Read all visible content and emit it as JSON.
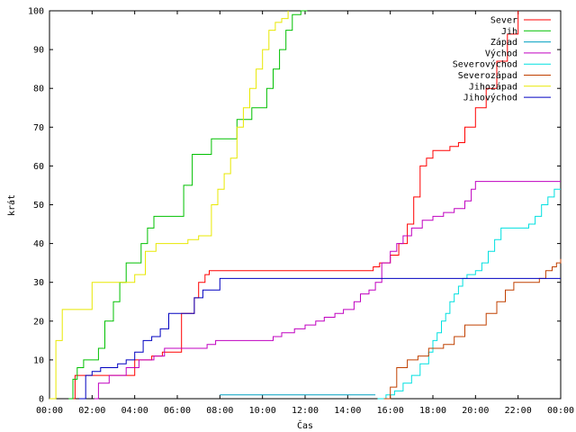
{
  "chart_data": {
    "type": "line",
    "title": "",
    "xlabel": "Čas",
    "ylabel": "krát",
    "xlim": [
      0,
      24
    ],
    "ylim": [
      0,
      100
    ],
    "x_ticks": [
      0,
      2,
      4,
      6,
      8,
      10,
      12,
      14,
      16,
      18,
      20,
      22,
      24
    ],
    "x_tick_labels": [
      "00:00",
      "02:00",
      "04:00",
      "06:00",
      "08:00",
      "10:00",
      "12:00",
      "14:00",
      "16:00",
      "18:00",
      "20:00",
      "22:00",
      "00:00"
    ],
    "y_ticks": [
      0,
      10,
      20,
      30,
      40,
      50,
      60,
      70,
      80,
      90,
      100
    ],
    "y_tick_labels": [
      "0",
      "10",
      "20",
      "30",
      "40",
      "50",
      "60",
      "70",
      "80",
      "90",
      "100"
    ],
    "grid": false,
    "legend_position": "top-right",
    "series": [
      {
        "name": "Sever",
        "color": "#ff0000",
        "x": [
          1.0,
          1.2,
          2.0,
          3.3,
          4.0,
          4.8,
          5.3,
          6.2,
          6.6,
          6.8,
          7.0,
          7.3,
          7.5,
          8.0,
          10.0,
          12.0,
          14.0,
          15.0,
          15.2,
          15.5,
          16.0,
          16.4,
          16.8,
          17.1,
          17.4,
          17.7,
          18.0,
          18.3,
          18.8,
          19.2,
          19.5,
          20.0,
          20.5,
          21.0,
          21.5,
          22.0
        ],
        "y": [
          0,
          6,
          6,
          6,
          10,
          11,
          12,
          22,
          22,
          26,
          30,
          32,
          33,
          33,
          33,
          33,
          33,
          33,
          34,
          35,
          37,
          40,
          45,
          52,
          60,
          62,
          64,
          64,
          65,
          66,
          70,
          75,
          80,
          87,
          94,
          100
        ]
      },
      {
        "name": "Jih",
        "color": "#00c000",
        "x": [
          0.9,
          1.1,
          1.3,
          1.6,
          2.0,
          2.3,
          2.6,
          3.0,
          3.3,
          3.6,
          4.0,
          4.3,
          4.6,
          4.9,
          5.2,
          5.5,
          6.0,
          6.3,
          6.7,
          7.2,
          7.6,
          8.0,
          8.5,
          8.8,
          9.2,
          9.5,
          9.8,
          10.2,
          10.5,
          10.8,
          11.1,
          11.4,
          11.6,
          11.8,
          12.1
        ],
        "y": [
          0,
          5,
          8,
          10,
          10,
          13,
          20,
          25,
          30,
          35,
          35,
          40,
          44,
          47,
          47,
          47,
          47,
          55,
          63,
          63,
          67,
          67,
          67,
          72,
          72,
          75,
          75,
          80,
          85,
          90,
          95,
          99,
          99,
          100,
          100
        ]
      },
      {
        "name": "Západ",
        "color": "#00a0c0",
        "x": [
          8.0,
          9.0,
          10.0,
          11.0,
          12.0,
          13.0,
          14.0,
          15.0,
          15.3
        ],
        "y": [
          1,
          1,
          1,
          1,
          1,
          1,
          1,
          1,
          1
        ]
      },
      {
        "name": "Východ",
        "color": "#c000c0",
        "x": [
          2.1,
          2.3,
          2.8,
          3.6,
          4.2,
          4.9,
          5.4,
          6.0,
          6.7,
          7.4,
          7.8,
          8.4,
          9.2,
          10.0,
          10.5,
          10.9,
          11.5,
          12.0,
          12.5,
          12.9,
          13.4,
          13.8,
          14.3,
          14.6,
          15.0,
          15.3,
          15.6,
          16.0,
          16.3,
          16.6,
          17.0,
          17.5,
          18.0,
          18.5,
          19.0,
          19.5,
          19.8,
          20.0,
          21.0,
          22.0,
          23.0,
          24.0
        ],
        "y": [
          0,
          4,
          6,
          8,
          10,
          11,
          13,
          13,
          13,
          14,
          15,
          15,
          15,
          15,
          16,
          17,
          18,
          19,
          20,
          21,
          22,
          23,
          25,
          27,
          28,
          30,
          35,
          38,
          40,
          42,
          44,
          46,
          47,
          48,
          49,
          51,
          54,
          56,
          56,
          56,
          56,
          56
        ]
      },
      {
        "name": "Severovýchod",
        "color": "#00e0e0",
        "x": [
          15.4,
          15.8,
          16.2,
          16.6,
          17.0,
          17.4,
          17.8,
          18.0,
          18.2,
          18.4,
          18.6,
          18.8,
          19.0,
          19.2,
          19.4,
          19.6,
          19.8,
          20.0,
          20.3,
          20.6,
          20.9,
          21.2,
          21.5,
          22.0,
          22.5,
          22.8,
          23.1,
          23.4,
          23.7,
          24.0
        ],
        "y": [
          0,
          1,
          2,
          4,
          6,
          9,
          12,
          15,
          17,
          20,
          22,
          25,
          27,
          29,
          31,
          32,
          32,
          33,
          35,
          38,
          41,
          44,
          44,
          44,
          45,
          47,
          50,
          52,
          54,
          54
        ]
      },
      {
        "name": "Severozápad",
        "color": "#c04000",
        "x": [
          15.7,
          16.0,
          16.3,
          16.8,
          17.3,
          17.8,
          18.1,
          18.5,
          19.0,
          19.5,
          20.0,
          20.5,
          21.0,
          21.4,
          21.8,
          22.0,
          22.5,
          23.0,
          23.3,
          23.6,
          23.8,
          24.0
        ],
        "y": [
          0,
          3,
          8,
          10,
          11,
          13,
          13,
          14,
          16,
          19,
          19,
          22,
          25,
          28,
          30,
          30,
          30,
          31,
          33,
          34,
          35,
          36
        ]
      },
      {
        "name": "Jihozápad",
        "color": "#e8e800",
        "x": [
          0.0,
          0.3,
          0.6,
          1.0,
          1.5,
          2.0,
          2.5,
          3.0,
          3.5,
          4.0,
          4.5,
          5.0,
          5.5,
          6.0,
          6.5,
          7.0,
          7.3,
          7.6,
          7.9,
          8.2,
          8.5,
          8.8,
          9.1,
          9.4,
          9.7,
          10.0,
          10.3,
          10.6,
          10.9,
          11.2
        ],
        "y": [
          0,
          15,
          23,
          23,
          23,
          30,
          30,
          30,
          30,
          32,
          38,
          40,
          40,
          40,
          41,
          42,
          42,
          50,
          54,
          58,
          62,
          70,
          75,
          80,
          85,
          90,
          95,
          97,
          98,
          100
        ]
      },
      {
        "name": "Jihovýchod",
        "color": "#0000c0",
        "x": [
          1.4,
          1.7,
          2.0,
          2.4,
          2.8,
          3.2,
          3.6,
          4.0,
          4.4,
          4.8,
          5.2,
          5.6,
          6.0,
          6.4,
          6.8,
          7.2,
          7.6,
          8.0,
          9.0,
          10.0,
          12.0,
          14.0,
          16.0,
          18.0,
          20.0,
          22.0,
          24.0
        ],
        "y": [
          0,
          6,
          7,
          8,
          8,
          9,
          10,
          12,
          15,
          16,
          18,
          22,
          22,
          22,
          26,
          28,
          28,
          31,
          31,
          31,
          31,
          31,
          31,
          31,
          31,
          31,
          31
        ]
      }
    ]
  }
}
